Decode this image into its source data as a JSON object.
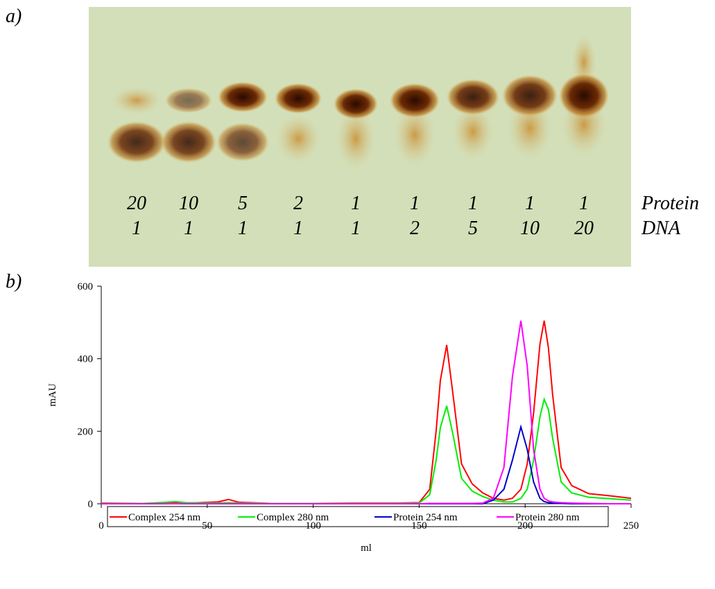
{
  "panel_a": {
    "label": "a)",
    "protein_ratios": [
      "20",
      "10",
      "5",
      "2",
      "1",
      "1",
      "1",
      "1",
      "1"
    ],
    "dna_ratios": [
      "1",
      "1",
      "1",
      "1",
      "1",
      "2",
      "5",
      "10",
      "20"
    ],
    "row_labels": [
      "Protein",
      "DNA"
    ]
  },
  "panel_b": {
    "label": "b)"
  },
  "chart_data": {
    "type": "line",
    "xlabel": "ml",
    "ylabel": "mAU",
    "x": [
      0,
      20,
      30,
      35,
      40,
      55,
      60,
      65,
      80,
      100,
      120,
      140,
      150,
      155,
      158,
      160,
      163,
      166,
      170,
      175,
      180,
      185,
      190,
      194,
      198,
      201,
      204,
      207,
      209,
      211,
      213,
      217,
      222,
      230,
      240,
      250
    ],
    "series": [
      {
        "name": "Complex 254 nm",
        "color": "#ff0000",
        "values": [
          2,
          1,
          2,
          2,
          2,
          5,
          12,
          4,
          1,
          1,
          2,
          2,
          3,
          40,
          200,
          340,
          438,
          300,
          110,
          55,
          30,
          15,
          10,
          15,
          40,
          110,
          250,
          440,
          505,
          430,
          300,
          100,
          50,
          28,
          22,
          15
        ]
      },
      {
        "name": "Complex 280 nm",
        "color": "#00ee00",
        "values": [
          1,
          1,
          4,
          6,
          3,
          2,
          3,
          2,
          1,
          1,
          1,
          1,
          2,
          25,
          120,
          210,
          270,
          190,
          70,
          35,
          20,
          10,
          5,
          5,
          15,
          40,
          120,
          240,
          288,
          260,
          180,
          60,
          30,
          18,
          14,
          10
        ]
      },
      {
        "name": "Protein 254 nm",
        "color": "#0000cc",
        "values": [
          0,
          0,
          0,
          0,
          0,
          0,
          0,
          0,
          0,
          0,
          0,
          0,
          0,
          0,
          0,
          0,
          0,
          0,
          0,
          0,
          0,
          10,
          40,
          120,
          212,
          150,
          60,
          15,
          6,
          3,
          2,
          1,
          0,
          0,
          0,
          0
        ]
      },
      {
        "name": "Protein 280 nm",
        "color": "#ff00ff",
        "values": [
          0,
          0,
          0,
          0,
          0,
          0,
          0,
          0,
          0,
          0,
          0,
          0,
          0,
          1,
          1,
          1,
          1,
          1,
          1,
          1,
          2,
          15,
          100,
          350,
          505,
          380,
          150,
          40,
          15,
          8,
          5,
          3,
          2,
          1,
          0,
          0
        ]
      }
    ],
    "xlim": [
      0,
      250
    ],
    "xticks": [
      0,
      50,
      100,
      150,
      200,
      250
    ],
    "ylim": [
      0,
      600
    ],
    "yticks": [
      0,
      200,
      400,
      600
    ],
    "grid": false,
    "legend": "bottom"
  }
}
